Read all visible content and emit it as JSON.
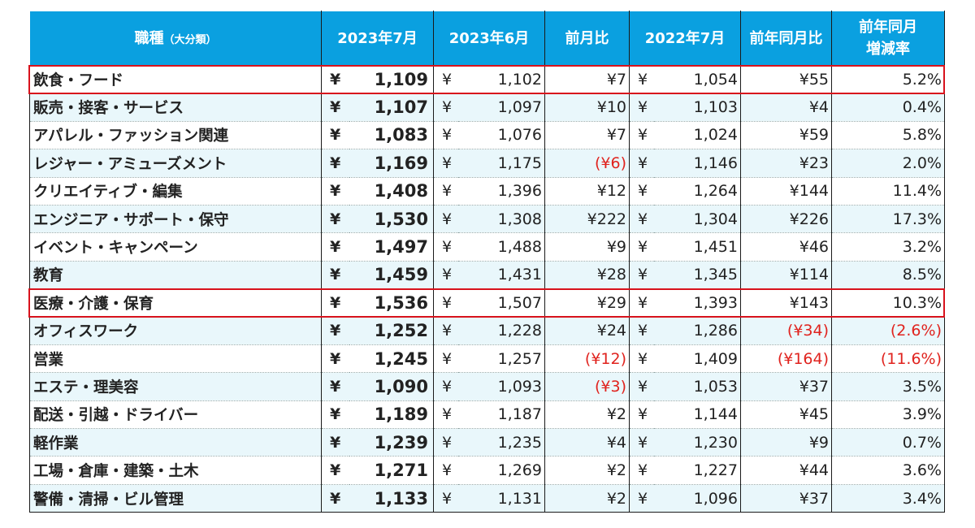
{
  "headers": {
    "category": "職種",
    "category_sub": "（大分類）",
    "jul2023": "2023年7月",
    "jun2023": "2023年6月",
    "mom": "前月比",
    "jul2022": "2022年7月",
    "yoy": "前年同月比",
    "yoy_rate_line1": "前年同月",
    "yoy_rate_line2": "増減率"
  },
  "currency": "¥",
  "rows": [
    {
      "label": "飲食・フード",
      "jul2023": "1,109",
      "jun2023": "1,102",
      "mom": "¥7",
      "jul2022": "1,054",
      "yoy": "¥55",
      "rate": "5.2%",
      "highlight": true
    },
    {
      "label": "販売・接客・サービス",
      "jul2023": "1,107",
      "jun2023": "1,097",
      "mom": "¥10",
      "jul2022": "1,103",
      "yoy": "¥4",
      "rate": "0.4%"
    },
    {
      "label": "アパレル・ファッション関連",
      "jul2023": "1,083",
      "jun2023": "1,076",
      "mom": "¥7",
      "jul2022": "1,024",
      "yoy": "¥59",
      "rate": "5.8%"
    },
    {
      "label": "レジャー・アミューズメント",
      "jul2023": "1,169",
      "jun2023": "1,175",
      "mom": "(¥6)",
      "mom_neg": true,
      "jul2022": "1,146",
      "yoy": "¥23",
      "rate": "2.0%"
    },
    {
      "label": "クリエイティブ・編集",
      "jul2023": "1,408",
      "jun2023": "1,396",
      "mom": "¥12",
      "jul2022": "1,264",
      "yoy": "¥144",
      "rate": "11.4%"
    },
    {
      "label": "エンジニア・サポート・保守",
      "jul2023": "1,530",
      "jun2023": "1,308",
      "mom": "¥222",
      "jul2022": "1,304",
      "yoy": "¥226",
      "rate": "17.3%"
    },
    {
      "label": "イベント・キャンペーン",
      "jul2023": "1,497",
      "jun2023": "1,488",
      "mom": "¥9",
      "jul2022": "1,451",
      "yoy": "¥46",
      "rate": "3.2%"
    },
    {
      "label": "教育",
      "jul2023": "1,459",
      "jun2023": "1,431",
      "mom": "¥28",
      "jul2022": "1,345",
      "yoy": "¥114",
      "rate": "8.5%"
    },
    {
      "label": "医療・介護・保育",
      "jul2023": "1,536",
      "jun2023": "1,507",
      "mom": "¥29",
      "jul2022": "1,393",
      "yoy": "¥143",
      "rate": "10.3%",
      "highlight": true
    },
    {
      "label": "オフィスワーク",
      "jul2023": "1,252",
      "jun2023": "1,228",
      "mom": "¥24",
      "jul2022": "1,286",
      "yoy": "(¥34)",
      "yoy_neg": true,
      "rate": "(2.6%)",
      "rate_neg": true
    },
    {
      "label": "営業",
      "jul2023": "1,245",
      "jun2023": "1,257",
      "mom": "(¥12)",
      "mom_neg": true,
      "jul2022": "1,409",
      "yoy": "(¥164)",
      "yoy_neg": true,
      "rate": "(11.6%)",
      "rate_neg": true
    },
    {
      "label": "エステ・理美容",
      "jul2023": "1,090",
      "jun2023": "1,093",
      "mom": "(¥3)",
      "mom_neg": true,
      "jul2022": "1,053",
      "yoy": "¥37",
      "rate": "3.5%"
    },
    {
      "label": "配送・引越・ドライバー",
      "jul2023": "1,189",
      "jun2023": "1,187",
      "mom": "¥2",
      "jul2022": "1,144",
      "yoy": "¥45",
      "rate": "3.9%"
    },
    {
      "label": "軽作業",
      "jul2023": "1,239",
      "jun2023": "1,235",
      "mom": "¥4",
      "jul2022": "1,230",
      "yoy": "¥9",
      "rate": "0.7%"
    },
    {
      "label": "工場・倉庫・建築・土木",
      "jul2023": "1,271",
      "jun2023": "1,269",
      "mom": "¥2",
      "jul2022": "1,227",
      "yoy": "¥44",
      "rate": "3.6%"
    },
    {
      "label": "警備・清掃・ビル管理",
      "jul2023": "1,133",
      "jun2023": "1,131",
      "mom": "¥2",
      "jul2022": "1,096",
      "yoy": "¥37",
      "rate": "3.4%"
    }
  ],
  "colors": {
    "header_bg": "#0aa0e0",
    "negative": "#e0231e",
    "highlight_border": "#d8121c",
    "stripe": "#e9f7fb"
  }
}
